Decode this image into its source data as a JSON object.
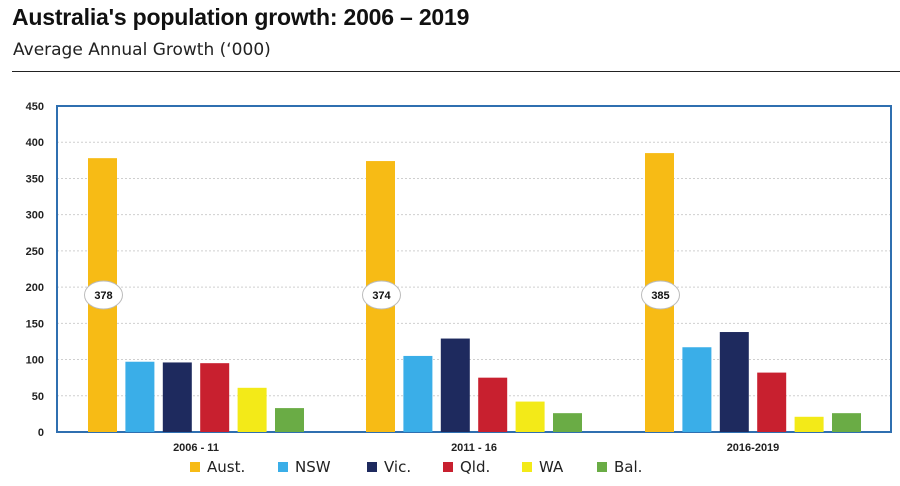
{
  "header": {
    "title": "Australia's population growth: 2006 – 2019",
    "subtitle": "Average Annual Growth (‘000)"
  },
  "chart_data": {
    "type": "bar",
    "categories": [
      "2006 - 11",
      "2011 - 16",
      "2016-2019"
    ],
    "series": [
      {
        "name": "Aust.",
        "color": "#f7bb15",
        "values": [
          378,
          374,
          385
        ]
      },
      {
        "name": "NSW",
        "color": "#3aaee8",
        "values": [
          97,
          105,
          117
        ]
      },
      {
        "name": "Vic.",
        "color": "#1e2a5e",
        "values": [
          96,
          129,
          138
        ]
      },
      {
        "name": "Qld.",
        "color": "#c8202f",
        "values": [
          95,
          75,
          82
        ]
      },
      {
        "name": "WA",
        "color": "#f3ea18",
        "values": [
          61,
          42,
          21
        ]
      },
      {
        "name": "Bal.",
        "color": "#6aac45",
        "values": [
          33,
          26,
          26
        ]
      }
    ],
    "callouts": [
      "378",
      "374",
      "385"
    ],
    "ylim": [
      0,
      450
    ],
    "yticks": [
      0,
      50,
      100,
      150,
      200,
      250,
      300,
      350,
      400,
      450
    ],
    "grid": true,
    "legend": "bottom",
    "frame_color": "#2f6fb0"
  }
}
